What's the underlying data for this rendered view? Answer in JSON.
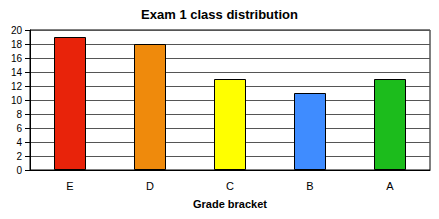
{
  "chart_data": {
    "type": "bar",
    "title": "Exam 1 class distribution",
    "x_label": "Grade bracket",
    "categories": [
      "E",
      "D",
      "C",
      "B",
      "A"
    ],
    "values": [
      19,
      18,
      13,
      11,
      13
    ],
    "colors": [
      "#e8230a",
      "#ef8a0c",
      "#ffff00",
      "#3f8cff",
      "#1cbc1c"
    ],
    "ylim": [
      0,
      20
    ],
    "yticks": [
      0,
      2,
      4,
      6,
      8,
      10,
      12,
      14,
      16,
      18,
      20
    ],
    "grid": true
  }
}
